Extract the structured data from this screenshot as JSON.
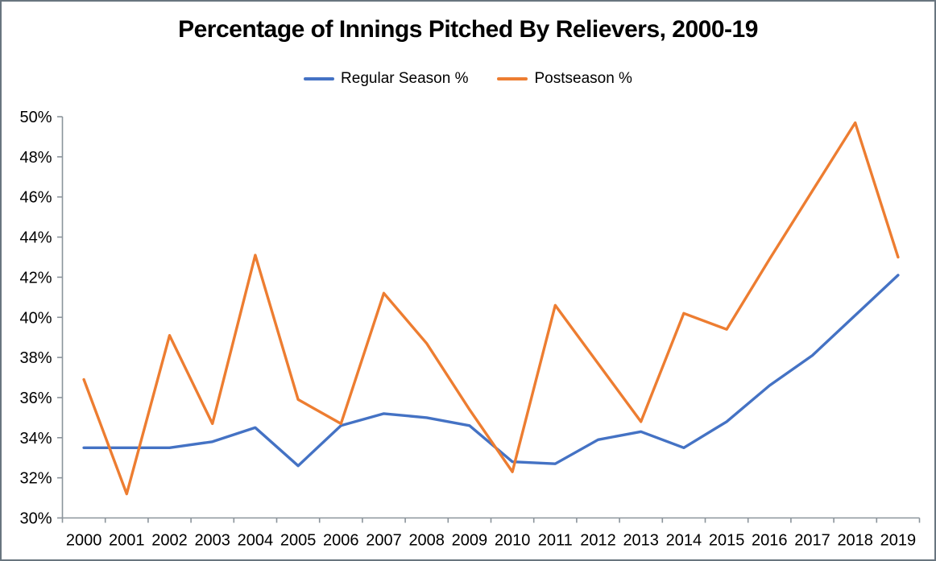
{
  "frame": {
    "border_color": "#69757f",
    "background": "#ffffff"
  },
  "chart_data": {
    "type": "line",
    "title": "Percentage of Innings Pitched By Relievers, 2000-19",
    "legend_position": "top",
    "gridlines": false,
    "axis_color": "#8B949B",
    "text_color": "#000000",
    "categories": [
      "2000",
      "2001",
      "2002",
      "2003",
      "2004",
      "2005",
      "2006",
      "2007",
      "2008",
      "2009",
      "2010",
      "2011",
      "2012",
      "2013",
      "2014",
      "2015",
      "2016",
      "2017",
      "2018",
      "2019"
    ],
    "series": [
      {
        "name": "Regular Season %",
        "color": "#4472C4",
        "values": [
          33.5,
          33.5,
          33.5,
          33.8,
          34.5,
          32.6,
          34.6,
          35.2,
          35.0,
          34.6,
          32.8,
          32.7,
          33.9,
          34.3,
          33.5,
          34.8,
          36.6,
          38.1,
          40.1,
          42.1
        ]
      },
      {
        "name": "Postseason %",
        "color": "#ED7D31",
        "values": [
          36.9,
          31.2,
          39.1,
          34.7,
          43.1,
          35.9,
          34.7,
          41.2,
          38.7,
          35.4,
          32.3,
          40.6,
          37.7,
          34.8,
          40.2,
          39.4,
          42.9,
          46.3,
          49.7,
          43.0
        ]
      }
    ],
    "y_axis": {
      "min": 30,
      "max": 50,
      "tick_step": 2,
      "tick_labels": [
        "30%",
        "32%",
        "34%",
        "36%",
        "38%",
        "40%",
        "42%",
        "44%",
        "46%",
        "48%",
        "50%"
      ]
    }
  }
}
